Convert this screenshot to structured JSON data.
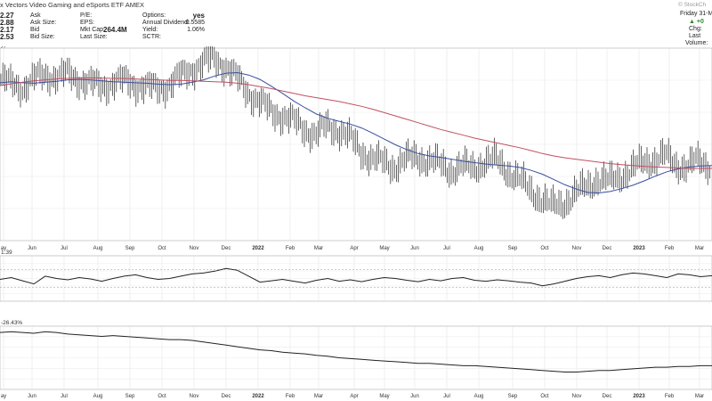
{
  "header": {
    "title": "x Vectors Video Gaming and eSports ETF",
    "exchange": "AMEX",
    "brand": "© StockCh",
    "date_label": "Friday 31-M",
    "col1": [
      {
        "label": "Ask",
        "value": "2.27"
      },
      {
        "label": "Ask Size:",
        "value": "2.88"
      },
      {
        "label": "Bid",
        "value": "2.17"
      },
      {
        "label": "Bid Size:",
        "value": "2.53"
      }
    ],
    "col2": [
      {
        "label": "P/E:",
        "value": ""
      },
      {
        "label": "EPS:",
        "value": ""
      },
      {
        "label": "Mkt Cap:",
        "value": "264.4M"
      },
      {
        "label": "Last Size:",
        "value": ""
      }
    ],
    "col3": [
      {
        "label": "Options:",
        "value": "yes"
      },
      {
        "label": "Annual Dividend:",
        "value": "0.5585"
      },
      {
        "label": "Yield:",
        "value": "1.06%"
      },
      {
        "label": "SCTR:",
        "value": ""
      }
    ],
    "col4": [
      {
        "label": "▲",
        "value": "+0"
      },
      {
        "label": "Chg:",
        "value": ""
      },
      {
        "label": "Last",
        "value": ""
      },
      {
        "label": "Volume:",
        "value": ""
      }
    ]
  },
  "chart_data": [
    {
      "type": "line",
      "panel": "price",
      "label": "y) 52.88",
      "grid": true,
      "x_tick_labels": [
        "ay",
        "Jun",
        "Jul",
        "Aug",
        "Sep",
        "Oct",
        "Nov",
        "Dec",
        "2022",
        "Feb",
        "Mar",
        "Apr",
        "May",
        "Jun",
        "Jul",
        "Aug",
        "Sep",
        "Oct",
        "Nov",
        "Dec",
        "2023",
        "Feb",
        "Mar"
      ],
      "ylim": [
        30,
        70
      ],
      "series": [
        {
          "name": "price",
          "style": "ohlc-bars",
          "color": "#222222",
          "values": [
            63.5,
            62.5,
            61.8,
            63.6,
            64.5,
            64.0,
            64.6,
            63.4,
            62.6,
            62.0,
            62.8,
            63.2,
            62.4,
            61.8,
            61.6,
            62.4,
            64.2,
            65.6,
            66.8,
            67.8,
            66.2,
            63.6,
            60.8,
            58.8,
            56.8,
            56.0,
            54.8,
            53.2,
            52.0,
            53.8,
            53.0,
            51.4,
            48.6,
            47.0,
            46.2,
            45.4,
            46.8,
            47.4,
            46.6,
            45.8,
            44.6,
            45.4,
            45.0,
            46.4,
            46.8,
            44.6,
            42.8,
            40.6,
            38.8,
            37.0,
            37.8,
            39.6,
            41.2,
            42.8,
            42.2,
            43.4,
            44.6,
            46.2,
            46.8,
            47.6,
            45.8,
            45.4,
            46.6,
            45.6
          ]
        },
        {
          "name": "MA 50",
          "color": "#3a4ea0",
          "values": [
            62.8,
            63.0,
            62.8,
            62.7,
            62.9,
            63.1,
            63.4,
            63.5,
            63.4,
            63.2,
            63.0,
            62.9,
            62.8,
            62.7,
            62.5,
            62.4,
            62.5,
            62.9,
            63.4,
            64.2,
            64.8,
            64.9,
            64.4,
            63.5,
            62.1,
            60.6,
            59.0,
            57.6,
            56.3,
            55.4,
            54.8,
            54.2,
            53.4,
            52.3,
            51.1,
            49.9,
            48.9,
            48.1,
            47.6,
            47.3,
            46.9,
            46.5,
            46.2,
            45.9,
            45.7,
            45.5,
            45.2,
            44.6,
            43.8,
            42.7,
            41.6,
            40.7,
            40.0,
            39.9,
            40.2,
            40.8,
            41.5,
            42.4,
            43.4,
            44.3,
            44.9,
            45.3,
            45.5,
            45.6
          ]
        },
        {
          "name": "MA 200",
          "color": "#c05060",
          "values": [
            62.2,
            62.6,
            62.9,
            63.2,
            63.4,
            63.6,
            63.7,
            63.8,
            63.8,
            63.8,
            63.7,
            63.7,
            63.6,
            63.5,
            63.4,
            63.3,
            63.3,
            63.2,
            63.1,
            63.0,
            62.9,
            62.7,
            62.4,
            62.0,
            61.6,
            61.1,
            60.6,
            60.1,
            59.7,
            59.3,
            58.9,
            58.4,
            57.9,
            57.3,
            56.6,
            55.9,
            55.2,
            54.5,
            53.8,
            53.1,
            52.5,
            51.9,
            51.3,
            50.8,
            50.3,
            49.8,
            49.3,
            48.7,
            48.1,
            47.6,
            47.2,
            46.9,
            46.6,
            46.3,
            46.0,
            45.8,
            45.6,
            45.4,
            45.3,
            45.2,
            45.1,
            45.0,
            45.0,
            45.0
          ]
        }
      ]
    },
    {
      "type": "line",
      "panel": "oscillator",
      "label": "1.39",
      "grid": true,
      "ylim": [
        0,
        100
      ],
      "series": [
        {
          "name": "oscillator",
          "color": "#222222",
          "values": [
            48,
            52,
            45,
            38,
            55,
            50,
            47,
            52,
            49,
            44,
            50,
            55,
            58,
            52,
            48,
            50,
            55,
            60,
            62,
            66,
            72,
            68,
            55,
            42,
            45,
            48,
            44,
            40,
            46,
            50,
            44,
            47,
            43,
            48,
            52,
            50,
            46,
            43,
            48,
            45,
            50,
            52,
            46,
            44,
            47,
            45,
            42,
            40,
            34,
            38,
            44,
            50,
            54,
            56,
            52,
            58,
            62,
            60,
            56,
            52,
            60,
            58,
            54,
            56
          ]
        }
      ]
    },
    {
      "type": "line",
      "panel": "relative-strength",
      "label": "-26.43%",
      "grid": true,
      "x_tick_labels": [
        "ay",
        "Jun",
        "Jul",
        "Aug",
        "Sep",
        "Oct",
        "Nov",
        "Dec",
        "2022",
        "Feb",
        "Mar",
        "Apr",
        "May",
        "Jun",
        "Jul",
        "Aug",
        "Sep",
        "Oct",
        "Nov",
        "Dec",
        "2023",
        "Feb",
        "Mar"
      ],
      "ylim": [
        -80,
        0
      ],
      "series": [
        {
          "name": "relative-strength",
          "color": "#222222",
          "values": [
            -8,
            -7,
            -8,
            -9,
            -7,
            -8,
            -10,
            -11,
            -12,
            -13,
            -12,
            -13,
            -14,
            -15,
            -16,
            -17,
            -17,
            -18,
            -20,
            -22,
            -24,
            -26,
            -28,
            -30,
            -31,
            -33,
            -34,
            -35,
            -37,
            -38,
            -40,
            -41,
            -42,
            -43,
            -44,
            -45,
            -46,
            -47,
            -47,
            -48,
            -49,
            -50,
            -50,
            -51,
            -52,
            -53,
            -54,
            -55,
            -56,
            -57,
            -58,
            -58,
            -57,
            -56,
            -56,
            -55,
            -54,
            -53,
            -52,
            -52,
            -51,
            -51,
            -50,
            -50
          ]
        }
      ]
    }
  ]
}
